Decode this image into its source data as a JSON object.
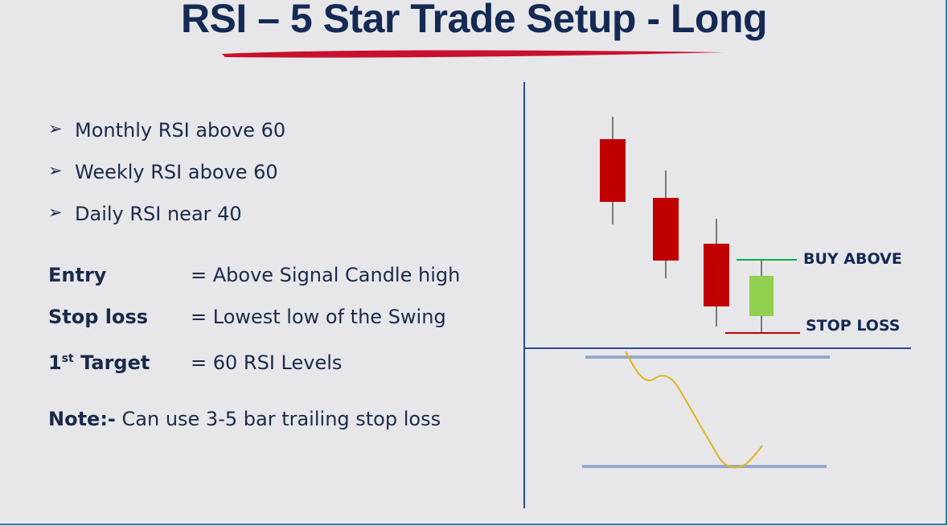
{
  "title": "RSI – 5 Star Trade Setup - Long",
  "bullets": [
    "Monthly RSI above 60",
    "Weekly RSI above 60",
    "Daily RSI near 40"
  ],
  "rules": {
    "entry": {
      "label": "Entry",
      "value": "= Above Signal Candle high"
    },
    "stop_loss": {
      "label": "Stop loss",
      "value": "= Lowest low of the Swing"
    },
    "target": {
      "label_prefix": "1",
      "label_sup": "st",
      "label_suffix": " Target",
      "value": "= 60 RSI Levels"
    }
  },
  "note": {
    "label": "Note:-",
    "text": " Can use 3-5 bar trailing stop loss"
  },
  "chart_labels": {
    "buy_above": "BUY ABOVE",
    "stop_loss": "STOP LOSS"
  },
  "colors": {
    "title": "#142a54",
    "underline": "#c8102e",
    "bearish_candle": "#c00000",
    "bullish_candle": "#92d050",
    "buy_line": "#00b050",
    "stop_line": "#c00000",
    "rsi_line": "#e0b41c",
    "rsi_level": "#8fa3c7",
    "axis": "#2e4a8c",
    "frame": "#2a7f99"
  }
}
